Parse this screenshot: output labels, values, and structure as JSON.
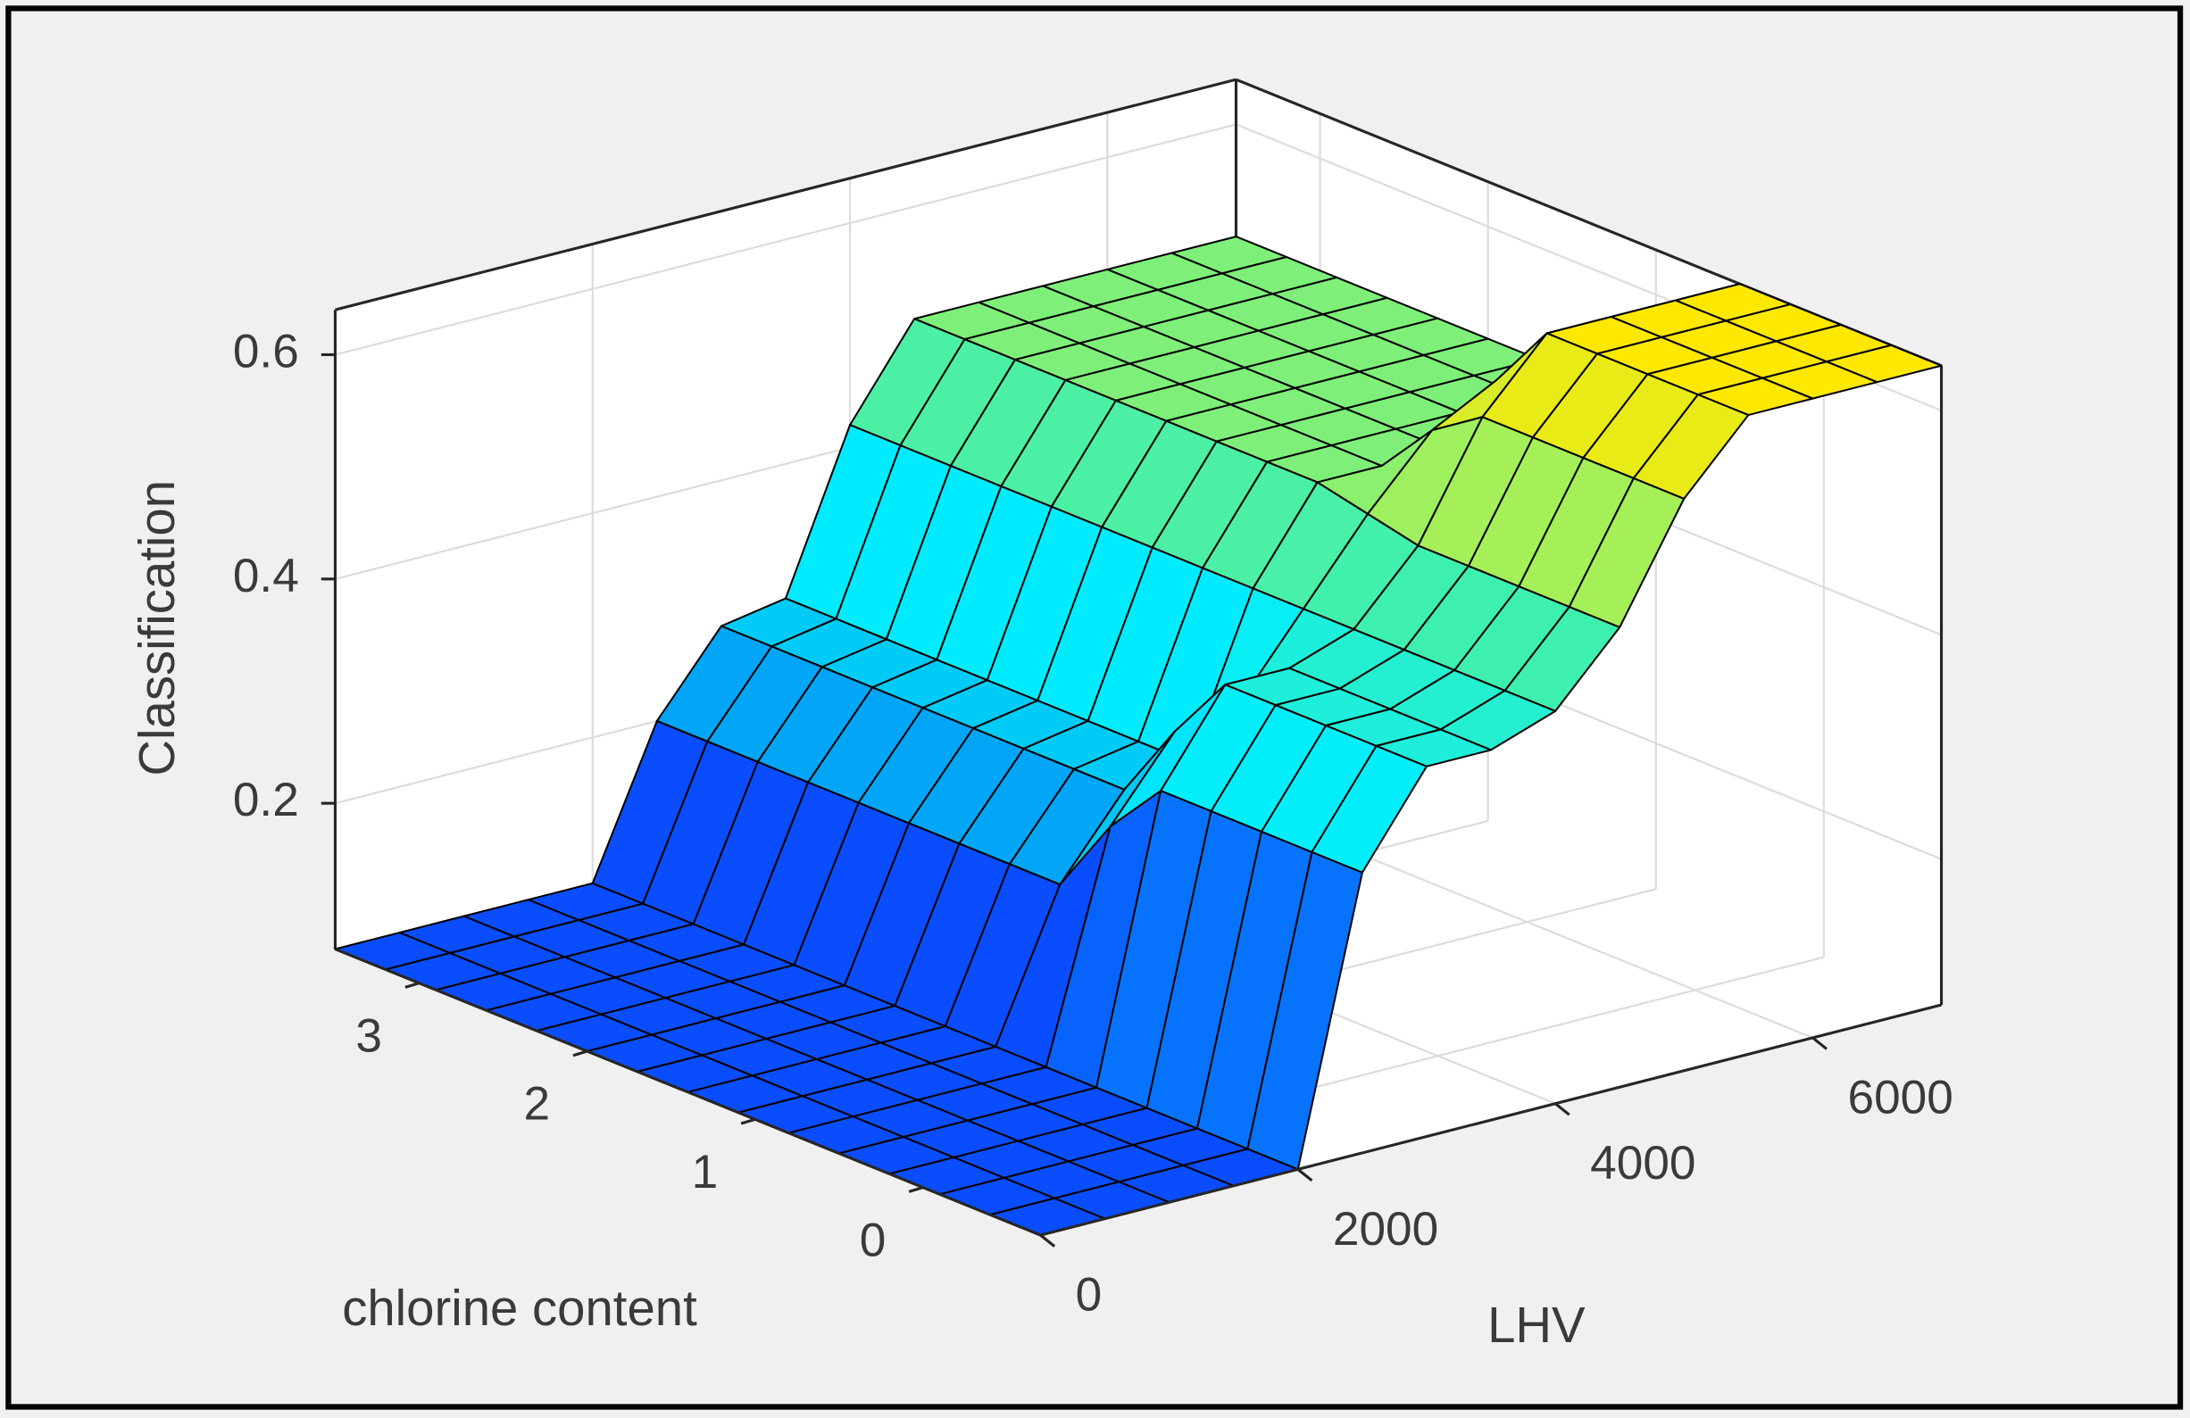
{
  "chart_data": {
    "type": "surface",
    "xlabel": "LHV",
    "ylabel": "chlorine content",
    "zlabel": "Classification",
    "x": [
      0,
      500,
      1000,
      1500,
      2000,
      2500,
      3000,
      3500,
      4000,
      4500,
      5000,
      5500,
      6000,
      6500,
      7000
    ],
    "y": [
      -0.7,
      -0.4,
      -0.1,
      0.2,
      0.5,
      0.8,
      1.1,
      1.4,
      1.7,
      2.0,
      2.3,
      2.6,
      2.9,
      3.2,
      3.5
    ],
    "z": [
      [
        0.07,
        0.07,
        0.07,
        0.07,
        0.07,
        0.32,
        0.4,
        0.4,
        0.42,
        0.48,
        0.58,
        0.64,
        0.64,
        0.64,
        0.64
      ],
      [
        0.07,
        0.07,
        0.07,
        0.07,
        0.07,
        0.32,
        0.4,
        0.4,
        0.42,
        0.48,
        0.58,
        0.64,
        0.64,
        0.64,
        0.64
      ],
      [
        0.07,
        0.07,
        0.07,
        0.07,
        0.07,
        0.32,
        0.4,
        0.4,
        0.42,
        0.48,
        0.58,
        0.64,
        0.64,
        0.64,
        0.64
      ],
      [
        0.07,
        0.07,
        0.07,
        0.07,
        0.07,
        0.32,
        0.4,
        0.4,
        0.42,
        0.48,
        0.58,
        0.64,
        0.64,
        0.64,
        0.64
      ],
      [
        0.07,
        0.07,
        0.07,
        0.07,
        0.07,
        0.32,
        0.4,
        0.4,
        0.42,
        0.48,
        0.58,
        0.64,
        0.64,
        0.64,
        0.64
      ],
      [
        0.07,
        0.07,
        0.07,
        0.07,
        0.07,
        0.27,
        0.34,
        0.35,
        0.42,
        0.49,
        0.55,
        0.58,
        0.58,
        0.58,
        0.58
      ],
      [
        0.07,
        0.07,
        0.07,
        0.07,
        0.07,
        0.2,
        0.27,
        0.28,
        0.42,
        0.5,
        0.5,
        0.5,
        0.5,
        0.5,
        0.5
      ],
      [
        0.07,
        0.07,
        0.07,
        0.07,
        0.07,
        0.2,
        0.27,
        0.28,
        0.42,
        0.5,
        0.5,
        0.5,
        0.5,
        0.5,
        0.5
      ],
      [
        0.07,
        0.07,
        0.07,
        0.07,
        0.07,
        0.2,
        0.27,
        0.28,
        0.42,
        0.5,
        0.5,
        0.5,
        0.5,
        0.5,
        0.5
      ],
      [
        0.07,
        0.07,
        0.07,
        0.07,
        0.07,
        0.2,
        0.27,
        0.28,
        0.42,
        0.5,
        0.5,
        0.5,
        0.5,
        0.5,
        0.5
      ],
      [
        0.07,
        0.07,
        0.07,
        0.07,
        0.07,
        0.2,
        0.27,
        0.28,
        0.42,
        0.5,
        0.5,
        0.5,
        0.5,
        0.5,
        0.5
      ],
      [
        0.07,
        0.07,
        0.07,
        0.07,
        0.07,
        0.2,
        0.27,
        0.28,
        0.42,
        0.5,
        0.5,
        0.5,
        0.5,
        0.5,
        0.5
      ],
      [
        0.07,
        0.07,
        0.07,
        0.07,
        0.07,
        0.2,
        0.27,
        0.28,
        0.42,
        0.5,
        0.5,
        0.5,
        0.5,
        0.5,
        0.5
      ],
      [
        0.07,
        0.07,
        0.07,
        0.07,
        0.07,
        0.2,
        0.27,
        0.28,
        0.42,
        0.5,
        0.5,
        0.5,
        0.5,
        0.5,
        0.5
      ],
      [
        0.07,
        0.07,
        0.07,
        0.07,
        0.07,
        0.2,
        0.27,
        0.28,
        0.42,
        0.5,
        0.5,
        0.5,
        0.5,
        0.5,
        0.5
      ]
    ],
    "xlim": [
      0,
      7000
    ],
    "ylim": [
      -0.7,
      3.5
    ],
    "zlim": [
      0.07,
      0.64
    ],
    "xticks": [
      0,
      2000,
      4000,
      6000
    ],
    "yticks": [
      0,
      1,
      2,
      3
    ],
    "zticks": [
      0.2,
      0.4,
      0.6
    ],
    "grid": true,
    "colormap": [
      "#0a4dff",
      "#0a4dff",
      "#00c4f4",
      "#00eeff",
      "#3ef0b0",
      "#b8f048",
      "#ffe800"
    ],
    "edge_color": "#000000"
  }
}
